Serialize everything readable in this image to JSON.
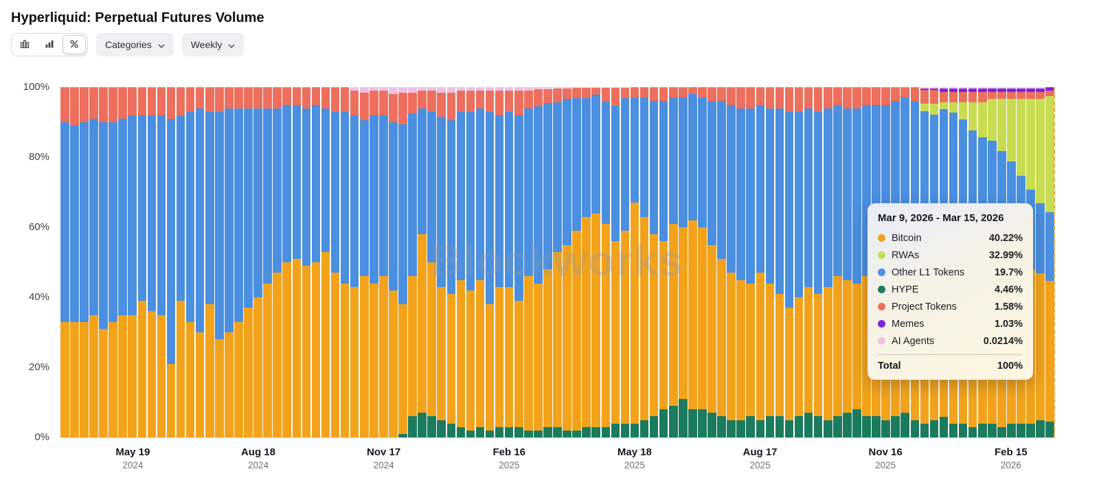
{
  "page": {
    "title": "Hyperliquid: Perpetual Futures Volume"
  },
  "toolbar": {
    "view_buttons": [
      "bar-chart-view",
      "stacked-bar-view",
      "percent-view"
    ],
    "active_view": "percent-view",
    "categories_label": "Categories",
    "interval_label": "Weekly"
  },
  "watermark": "Blockworks",
  "tooltip": {
    "title": "Mar 9, 2026 - Mar 15, 2026",
    "rows": [
      {
        "label": "Bitcoin",
        "value": "40.22%",
        "color": "#f3a31b"
      },
      {
        "label": "RWAs",
        "value": "32.99%",
        "color": "#c8dc52"
      },
      {
        "label": "Other L1 Tokens",
        "value": "19.7%",
        "color": "#4a8fe0"
      },
      {
        "label": "HYPE",
        "value": "4.46%",
        "color": "#1b7b5e"
      },
      {
        "label": "Project Tokens",
        "value": "1.58%",
        "color": "#ee6f5d"
      },
      {
        "label": "Memes",
        "value": "1.03%",
        "color": "#8023e0"
      },
      {
        "label": "AI Agents",
        "value": "0.0214%",
        "color": "#efc0e6"
      }
    ],
    "total_label": "Total",
    "total_value": "100%"
  },
  "chart_data": {
    "type": "bar",
    "stacked": true,
    "unit": "%",
    "title": "Hyperliquid: Perpetual Futures Volume",
    "interval": "Weekly",
    "ylim": [
      0,
      100
    ],
    "grid": false,
    "yticks": [
      {
        "label": "0%",
        "value": 0
      },
      {
        "label": "20%",
        "value": 20
      },
      {
        "label": "40%",
        "value": 40
      },
      {
        "label": "60%",
        "value": 60
      },
      {
        "label": "80%",
        "value": 80
      },
      {
        "label": "100%",
        "value": 100
      }
    ],
    "x_axis_labels": [
      {
        "index": 7,
        "line1": "May 19",
        "line2": "2024"
      },
      {
        "index": 20,
        "line1": "Aug 18",
        "line2": "2024"
      },
      {
        "index": 33,
        "line1": "Nov 17",
        "line2": "2024"
      },
      {
        "index": 46,
        "line1": "Feb 16",
        "line2": "2025"
      },
      {
        "index": 59,
        "line1": "May 18",
        "line2": "2025"
      },
      {
        "index": 72,
        "line1": "Aug 17",
        "line2": "2025"
      },
      {
        "index": 85,
        "line1": "Nov 16",
        "line2": "2025"
      },
      {
        "index": 98,
        "line1": "Feb 15",
        "line2": "2026"
      }
    ],
    "series_order_bottom_to_top": [
      "HYPE",
      "Bitcoin",
      "Other L1 Tokens",
      "RWAs",
      "Project Tokens",
      "Memes",
      "AI Agents"
    ],
    "series": [
      {
        "name": "HYPE",
        "color": "#1b7b5e",
        "values": [
          0,
          0,
          0,
          0,
          0,
          0,
          0,
          0,
          0,
          0,
          0,
          0,
          0,
          0,
          0,
          0,
          0,
          0,
          0,
          0,
          0,
          0,
          0,
          0,
          0,
          0,
          0,
          0,
          0,
          0,
          0,
          0,
          0,
          0,
          0,
          1,
          6,
          7,
          6,
          5,
          4,
          3,
          2,
          3,
          2,
          3,
          3,
          3,
          2,
          2,
          3,
          3,
          2,
          2,
          3,
          3,
          3,
          4,
          4,
          4,
          5,
          6,
          8,
          9,
          11,
          8,
          8,
          7,
          6,
          5,
          5,
          6,
          5,
          6,
          6,
          5,
          6,
          7,
          6,
          5,
          6,
          7,
          8,
          6,
          6,
          5,
          6,
          7,
          5,
          4,
          5,
          6,
          4,
          4,
          3,
          4,
          4,
          3,
          4,
          4,
          4,
          5,
          4.46
        ]
      },
      {
        "name": "Bitcoin",
        "color": "#f3a31b",
        "values": [
          33,
          33,
          33,
          35,
          31,
          33,
          35,
          35,
          39,
          36,
          35,
          21,
          39,
          33,
          30,
          38,
          28,
          30,
          33,
          37,
          40,
          44,
          47,
          50,
          51,
          49,
          50,
          53,
          47,
          44,
          43,
          46,
          44,
          46,
          42,
          37,
          40,
          51,
          44,
          38,
          37,
          42,
          40,
          42,
          36,
          40,
          40,
          36,
          44,
          42,
          45,
          50,
          53,
          57,
          60,
          61,
          58,
          52,
          55,
          63,
          58,
          52,
          48,
          52,
          49,
          54,
          52,
          48,
          45,
          42,
          40,
          38,
          42,
          38,
          35,
          32,
          34,
          36,
          35,
          38,
          40,
          38,
          36,
          40,
          45,
          48,
          52,
          57,
          48,
          45,
          46,
          48,
          50,
          46,
          44,
          45,
          46,
          44,
          45,
          46,
          44,
          42,
          40.22
        ]
      },
      {
        "name": "Other L1 Tokens",
        "color": "#4a8fe0",
        "values": [
          57,
          56,
          57,
          56,
          59,
          57,
          56,
          57,
          53,
          56,
          57,
          70,
          53,
          60,
          64,
          55,
          65,
          64,
          61,
          57,
          54,
          50,
          47,
          45,
          44,
          45,
          45,
          41,
          46,
          49,
          49,
          44.5,
          48,
          46,
          48,
          51.5,
          46.5,
          36,
          43,
          48.5,
          49.5,
          48,
          51,
          49,
          55,
          49,
          50,
          53,
          48,
          50.5,
          47.5,
          42.7,
          41.7,
          37.8,
          33.8,
          33.8,
          34.8,
          38.8,
          37.8,
          30,
          34,
          38,
          40,
          36,
          37,
          36,
          37,
          41,
          45,
          48,
          49,
          50,
          48,
          50,
          53,
          56,
          53,
          51,
          52,
          51,
          49,
          49,
          50,
          49,
          44,
          42,
          38,
          33,
          43,
          44.5,
          41.5,
          40,
          39,
          41,
          41,
          37,
          35,
          35,
          30,
          25,
          23,
          20,
          19.7
        ]
      },
      {
        "name": "RWAs",
        "color": "#c8dc52",
        "values": [
          0,
          0,
          0,
          0,
          0,
          0,
          0,
          0,
          0,
          0,
          0,
          0,
          0,
          0,
          0,
          0,
          0,
          0,
          0,
          0,
          0,
          0,
          0,
          0,
          0,
          0,
          0,
          0,
          0,
          0,
          0,
          0,
          0,
          0,
          0,
          0,
          0,
          0,
          0,
          0,
          0,
          0,
          0,
          0,
          0,
          0,
          0,
          0,
          0,
          0,
          0,
          0,
          0,
          0,
          0,
          0,
          0,
          0,
          0,
          0,
          0,
          0,
          0,
          0,
          0,
          0,
          0,
          0,
          0,
          0,
          0,
          0,
          0,
          0,
          0,
          0,
          0,
          0,
          0,
          0,
          0,
          0,
          0,
          0,
          0,
          0,
          0,
          0,
          0,
          2,
          3,
          2,
          3,
          5,
          8,
          10,
          12,
          15,
          18,
          22,
          26,
          30,
          32.99
        ]
      },
      {
        "name": "Project Tokens",
        "color": "#ee6f5d",
        "values": [
          10,
          11,
          10,
          9,
          10,
          10,
          9,
          8,
          8,
          8,
          8,
          9,
          8,
          7,
          6,
          7,
          7,
          6,
          6,
          6,
          6,
          6,
          6,
          5,
          5,
          6,
          5,
          6,
          7,
          7,
          7,
          8,
          7,
          7,
          8,
          9,
          6,
          5,
          6,
          7,
          8,
          6,
          6,
          5,
          6,
          7,
          6,
          7,
          5,
          5,
          4,
          4,
          3,
          3,
          3,
          2,
          4,
          5,
          3,
          3,
          3,
          4,
          4,
          3,
          3,
          2,
          3,
          4,
          4,
          5,
          6,
          6,
          5,
          6,
          6,
          7,
          7,
          6,
          7,
          6,
          5,
          6,
          6,
          5,
          5,
          5,
          4,
          3,
          4,
          4,
          4,
          3,
          3,
          3,
          3,
          3,
          2,
          2,
          2,
          2,
          2,
          2,
          1.58
        ]
      },
      {
        "name": "Memes",
        "color": "#8023e0",
        "values": [
          0,
          0,
          0,
          0,
          0,
          0,
          0,
          0,
          0,
          0,
          0,
          0,
          0,
          0,
          0,
          0,
          0,
          0,
          0,
          0,
          0,
          0,
          0,
          0,
          0,
          0,
          0,
          0,
          0,
          0,
          0,
          0,
          0,
          0,
          0,
          0,
          0,
          0,
          0,
          0,
          0,
          0,
          0,
          0,
          0,
          0,
          0,
          0,
          0,
          0,
          0,
          0,
          0,
          0,
          0,
          0,
          0,
          0,
          0,
          0,
          0,
          0,
          0,
          0,
          0,
          0,
          0,
          0,
          0,
          0,
          0,
          0,
          0,
          0,
          0,
          0,
          0,
          0,
          0,
          0,
          0,
          0,
          0,
          0,
          0,
          0,
          0,
          0,
          0,
          0.5,
          0.5,
          1,
          1,
          1,
          1,
          1,
          1,
          1,
          1,
          1,
          1,
          1,
          1.03
        ]
      },
      {
        "name": "AI Agents",
        "color": "#efc0e6",
        "values": [
          0,
          0,
          0,
          0,
          0,
          0,
          0,
          0,
          0,
          0,
          0,
          0,
          0,
          0,
          0,
          0,
          0,
          0,
          0,
          0,
          0,
          0,
          0,
          0,
          0,
          0,
          0,
          0,
          0,
          0,
          1,
          1.5,
          1,
          1,
          2,
          1.5,
          1.5,
          1,
          1,
          1.5,
          1.5,
          1,
          1,
          1,
          1,
          1,
          1,
          1,
          1,
          0.5,
          0.5,
          0.3,
          0.3,
          0.2,
          0.2,
          0.2,
          0.2,
          0.2,
          0.2,
          0,
          0,
          0,
          0,
          0,
          0,
          0,
          0,
          0,
          0,
          0,
          0,
          0,
          0,
          0,
          0,
          0,
          0,
          0,
          0,
          0,
          0,
          0,
          0,
          0,
          0,
          0,
          0,
          0,
          0,
          0.3,
          0.3,
          0.3,
          0.3,
          0.3,
          0.3,
          0.3,
          0.3,
          0.3,
          0.3,
          0.3,
          0.3,
          0.3,
          0.0214
        ]
      }
    ]
  }
}
